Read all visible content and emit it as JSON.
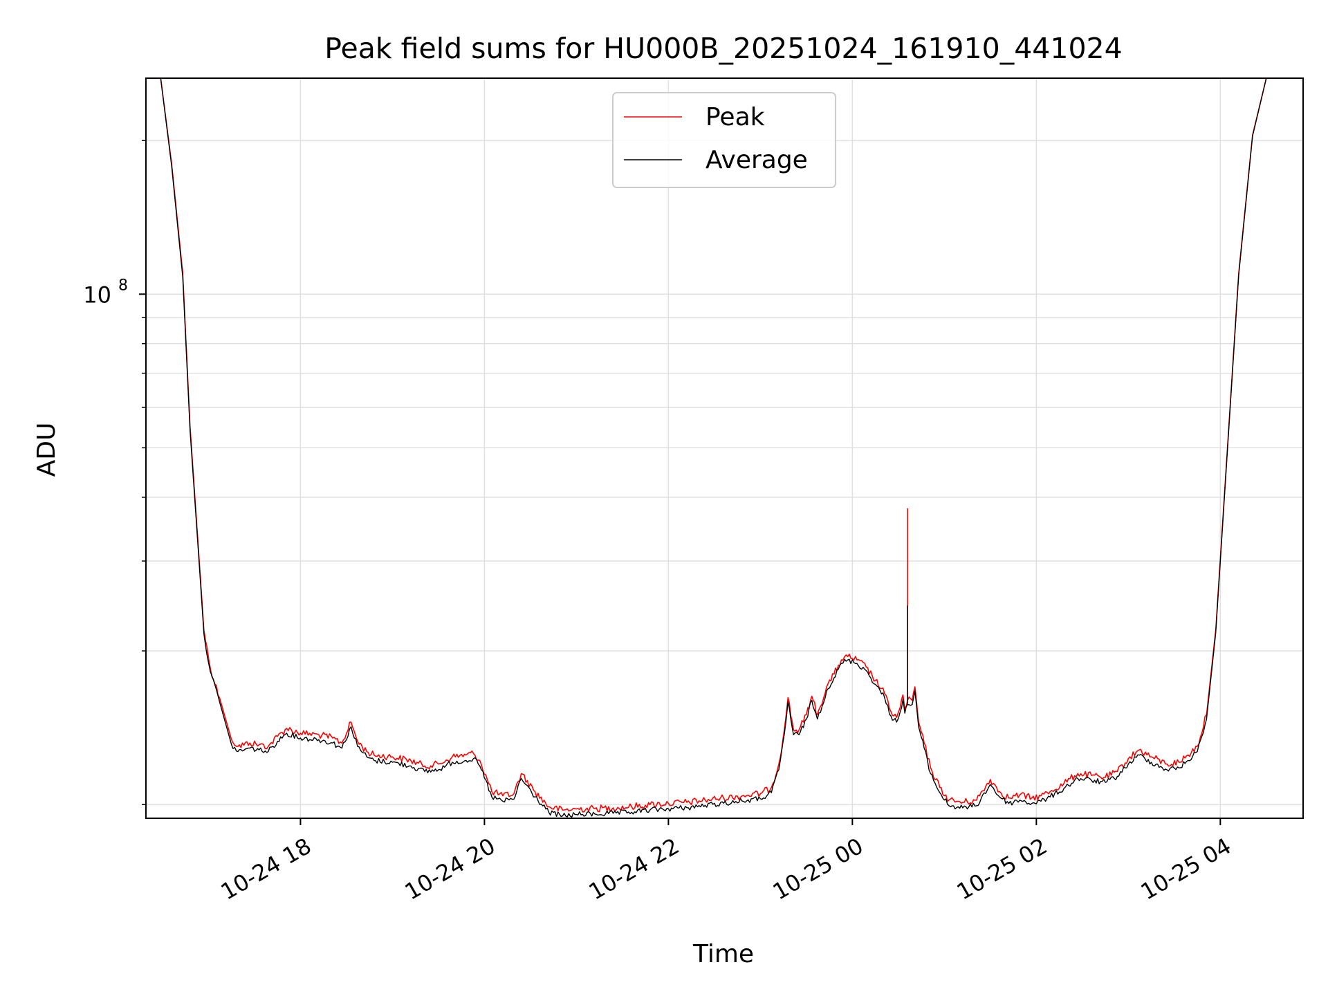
{
  "chart_data": {
    "type": "line",
    "title": "Peak field sums for HU000B_20251024_161910_441024",
    "xlabel": "Time",
    "ylabel": "ADU",
    "yscale": "log",
    "grid": true,
    "legend_position": "top-center",
    "x_unit": "hours since 2025-10-24 00:00",
    "xlim": [
      16.32,
      28.9
    ],
    "ylim": [
      9400000,
      265000000
    ],
    "x_ticks": [
      {
        "value": 18,
        "label": "10-24 18"
      },
      {
        "value": 20,
        "label": "10-24 20"
      },
      {
        "value": 22,
        "label": "10-24 22"
      },
      {
        "value": 24,
        "label": "10-25 00"
      },
      {
        "value": 26,
        "label": "10-25 02"
      },
      {
        "value": 28,
        "label": "10-25 04"
      }
    ],
    "y_major_tick": {
      "value": 100000000,
      "base": "10",
      "exponent": "8"
    },
    "y_minor_ticks": [
      10000000,
      20000000,
      30000000,
      40000000,
      50000000,
      60000000,
      70000000,
      80000000,
      90000000,
      200000000
    ],
    "series": [
      {
        "name": "Peak",
        "color": "#ff0000",
        "x": [
          16.32,
          16.48,
          16.6,
          16.72,
          16.8,
          16.9,
          16.95,
          17.02,
          17.12,
          17.25,
          17.32,
          17.45,
          17.55,
          17.65,
          17.75,
          17.85,
          18.0,
          18.2,
          18.35,
          18.45,
          18.55,
          18.62,
          18.72,
          18.8,
          19.0,
          19.2,
          19.35,
          19.5,
          19.65,
          19.8,
          19.88,
          19.95,
          20.08,
          20.2,
          20.32,
          20.4,
          20.55,
          20.7,
          20.85,
          21.0,
          21.2,
          21.4,
          21.6,
          21.8,
          22.0,
          22.2,
          22.4,
          22.6,
          22.8,
          23.0,
          23.12,
          23.2,
          23.26,
          23.3,
          23.36,
          23.42,
          23.5,
          23.56,
          23.62,
          23.72,
          23.8,
          23.88,
          23.95,
          24.05,
          24.15,
          24.25,
          24.35,
          24.42,
          24.48,
          24.52,
          24.55,
          24.57,
          24.6,
          24.6,
          24.6,
          24.65,
          24.68,
          24.72,
          24.78,
          24.85,
          24.95,
          25.05,
          25.2,
          25.35,
          25.5,
          25.6,
          25.7,
          25.82,
          25.95,
          26.05,
          26.15,
          26.3,
          26.45,
          26.6,
          26.75,
          26.88,
          27.0,
          27.12,
          27.25,
          27.42,
          27.55,
          27.65,
          27.75,
          27.85,
          27.95,
          28.05,
          28.2,
          28.35,
          28.5,
          28.6,
          28.65,
          28.72,
          28.9
        ],
        "y": [
          265000000,
          265000000,
          180000000,
          110000000,
          55000000,
          30000000,
          22000000,
          18500000,
          16200000,
          13400000,
          13000000,
          13200000,
          13100000,
          13000000,
          13600000,
          14100000,
          13800000,
          13700000,
          13500000,
          13200000,
          14500000,
          13300000,
          12700000,
          12500000,
          12400000,
          12200000,
          11900000,
          12000000,
          12400000,
          12500000,
          12600000,
          12200000,
          10600000,
          10400000,
          10500000,
          11500000,
          10600000,
          9900000,
          9750000,
          9800000,
          9820000,
          9850000,
          9900000,
          10000000,
          10050000,
          10100000,
          10200000,
          10300000,
          10400000,
          10500000,
          10800000,
          12000000,
          14000000,
          16200000,
          14000000,
          14000000,
          15000000,
          16300000,
          15000000,
          17000000,
          18000000,
          19200000,
          19500000,
          19200000,
          18600000,
          17500000,
          16500000,
          15200000,
          14800000,
          15500000,
          16400000,
          15400000,
          16000000,
          38000000,
          16000000,
          16000000,
          17000000,
          14500000,
          13200000,
          11800000,
          10800000,
          10200000,
          10100000,
          10200000,
          11200000,
          10600000,
          10300000,
          10450000,
          10300000,
          10400000,
          10600000,
          11000000,
          11500000,
          11400000,
          11300000,
          11600000,
          12300000,
          12800000,
          12400000,
          12000000,
          12100000,
          12500000,
          13000000,
          15000000,
          22000000,
          42000000,
          110000000,
          205000000,
          265000000,
          265000000,
          265000000,
          265000000,
          265000000
        ]
      },
      {
        "name": "Average",
        "color": "#000000",
        "x": [
          16.32,
          16.48,
          16.6,
          16.72,
          16.8,
          16.9,
          16.95,
          17.02,
          17.12,
          17.25,
          17.32,
          17.45,
          17.55,
          17.65,
          17.75,
          17.85,
          18.0,
          18.2,
          18.35,
          18.45,
          18.55,
          18.62,
          18.72,
          18.8,
          19.0,
          19.2,
          19.35,
          19.5,
          19.65,
          19.8,
          19.88,
          19.95,
          20.08,
          20.2,
          20.32,
          20.4,
          20.55,
          20.7,
          20.85,
          21.0,
          21.2,
          21.4,
          21.6,
          21.8,
          22.0,
          22.2,
          22.4,
          22.6,
          22.8,
          23.0,
          23.12,
          23.2,
          23.26,
          23.3,
          23.36,
          23.42,
          23.5,
          23.56,
          23.62,
          23.72,
          23.8,
          23.88,
          23.95,
          24.05,
          24.15,
          24.25,
          24.35,
          24.42,
          24.48,
          24.52,
          24.55,
          24.57,
          24.6,
          24.6,
          24.6,
          24.65,
          24.68,
          24.72,
          24.78,
          24.85,
          24.95,
          25.05,
          25.2,
          25.35,
          25.5,
          25.6,
          25.7,
          25.82,
          25.95,
          26.05,
          26.15,
          26.3,
          26.45,
          26.6,
          26.75,
          26.88,
          27.0,
          27.12,
          27.25,
          27.42,
          27.55,
          27.65,
          27.75,
          27.85,
          27.95,
          28.05,
          28.2,
          28.35,
          28.5,
          28.6,
          28.65,
          28.72,
          28.9
        ],
        "y": [
          265000000,
          265000000,
          178000000,
          108000000,
          54000000,
          29500000,
          21600000,
          18200000,
          15900000,
          13100000,
          12700000,
          12900000,
          12800000,
          12700000,
          13300000,
          13800000,
          13500000,
          13400000,
          13200000,
          12900000,
          14200000,
          13000000,
          12400000,
          12200000,
          12100000,
          11900000,
          11600000,
          11700000,
          12100000,
          12200000,
          12300000,
          11900000,
          10350000,
          10150000,
          10250000,
          11250000,
          10350000,
          9650000,
          9500000,
          9560000,
          9580000,
          9610000,
          9660000,
          9760000,
          9810000,
          9860000,
          9960000,
          10060000,
          10160000,
          10260000,
          10550000,
          11700000,
          13700000,
          15900000,
          13700000,
          13700000,
          14700000,
          16000000,
          14700000,
          16700000,
          17700000,
          18900000,
          19200000,
          18900000,
          18300000,
          17200000,
          16200000,
          14900000,
          14500000,
          15200000,
          16100000,
          15100000,
          15700000,
          24500000,
          15700000,
          15700000,
          16700000,
          14200000,
          12900000,
          11500000,
          10550000,
          9950000,
          9850000,
          9950000,
          10950000,
          10350000,
          10050000,
          10200000,
          10050000,
          10150000,
          10350000,
          10750000,
          11250000,
          11150000,
          11050000,
          11350000,
          12000000,
          12500000,
          12100000,
          11700000,
          11800000,
          12200000,
          12700000,
          14700000,
          21700000,
          41500000,
          109000000,
          204000000,
          265000000,
          265000000,
          265000000,
          265000000,
          265000000
        ]
      }
    ]
  }
}
